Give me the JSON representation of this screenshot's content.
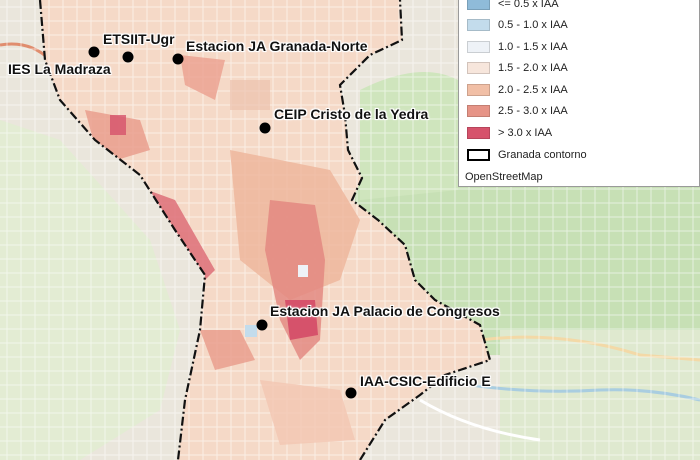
{
  "map": {
    "markers": [
      {
        "label": "ETSIIT-Ugr"
      },
      {
        "label": "Estacion JA Granada-Norte"
      },
      {
        "label": "IES La Madraza"
      },
      {
        "label": "CEIP Cristo de la Yedra"
      },
      {
        "label": "Estacion JA Palacio de Congresos"
      },
      {
        "label": "IAA-CSIC-Edificio E"
      }
    ]
  },
  "legend": {
    "items": [
      {
        "label": "<= 0.5 x IAA",
        "color": "#8fbbd9"
      },
      {
        "label": "0.5 - 1.0 x IAA",
        "color": "#c3dcec"
      },
      {
        "label": "1.0 - 1.5 x IAA",
        "color": "#eef2f7"
      },
      {
        "label": "1.5 - 2.0 x IAA",
        "color": "#f7e6dc"
      },
      {
        "label": "2.0 - 2.5 x IAA",
        "color": "#f1bfa6"
      },
      {
        "label": "2.5 - 3.0 x IAA",
        "color": "#e69487"
      },
      {
        "label": "> 3.0 x IAA",
        "color": "#d6526b"
      }
    ],
    "boundary_label": "Granada contorno",
    "basemap_label": "OpenStreetMap"
  }
}
